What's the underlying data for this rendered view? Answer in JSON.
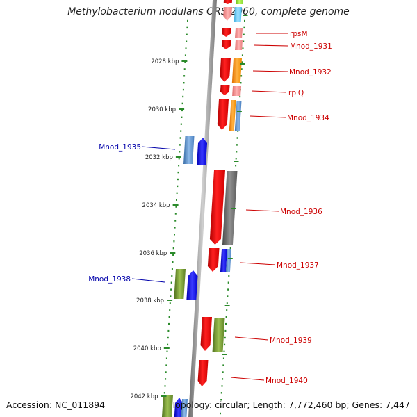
{
  "title": "Methylobacterium nodulans ORS 2060, complete genome",
  "footer": {
    "accession": "Accession: NC_011894",
    "summary": "Topology: circular; Length: 7,772,460 bp; Genes: 7,447"
  },
  "colors": {
    "forward_label": "#cc0000",
    "reverse_label": "#0000aa",
    "backbone": "#999999",
    "dots": "#2a8a2a"
  },
  "ticks": [
    {
      "label": "2028 kbp"
    },
    {
      "label": "2030 kbp"
    },
    {
      "label": "2032 kbp"
    },
    {
      "label": "2034 kbp"
    },
    {
      "label": "2036 kbp"
    },
    {
      "label": "2038 kbp"
    },
    {
      "label": "2040 kbp"
    },
    {
      "label": "2042 kbp"
    }
  ],
  "gene_labels": [
    {
      "name": "rpsM",
      "strand": "forward"
    },
    {
      "name": "Mnod_1931",
      "strand": "forward"
    },
    {
      "name": "Mnod_1932",
      "strand": "forward"
    },
    {
      "name": "rplQ",
      "strand": "forward"
    },
    {
      "name": "Mnod_1934",
      "strand": "forward"
    },
    {
      "name": "Mnod_1935",
      "strand": "reverse"
    },
    {
      "name": "Mnod_1936",
      "strand": "forward"
    },
    {
      "name": "Mnod_1937",
      "strand": "forward"
    },
    {
      "name": "Mnod_1938",
      "strand": "reverse"
    },
    {
      "name": "Mnod_1939",
      "strand": "forward"
    },
    {
      "name": "Mnod_1940",
      "strand": "forward"
    }
  ]
}
